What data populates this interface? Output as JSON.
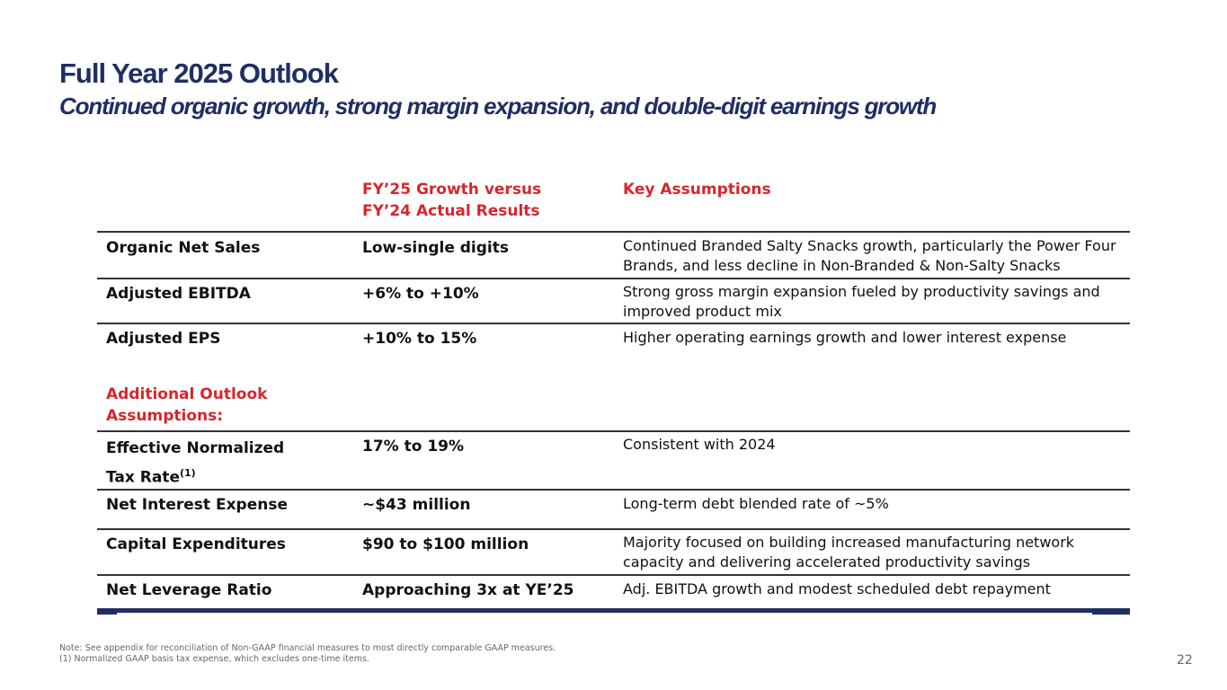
{
  "title": "Full Year 2025 Outlook",
  "subtitle": "Continued organic growth, strong margin expansion, and double-digit earnings growth",
  "headers": {
    "growth_line1": "FY’25 Growth versus",
    "growth_line2": "FY’24 Actual Results",
    "assumptions": "Key Assumptions"
  },
  "rows": [
    {
      "label": "Organic Net Sales",
      "value": "Low-single digits",
      "desc": "Continued Branded Salty Snacks growth, particularly the Power Four Brands, and less decline in Non-Branded & Non-Salty Snacks"
    },
    {
      "label": "Adjusted EBITDA",
      "value": "+6% to +10%",
      "desc": "Strong gross margin expansion fueled by productivity savings and improved product mix"
    },
    {
      "label": "Adjusted EPS",
      "value": "+10% to 15%",
      "desc": "Higher operating earnings growth and lower interest expense"
    }
  ],
  "additional_header_line1": "Additional Outlook",
  "additional_header_line2": "Assumptions:",
  "additional_rows": [
    {
      "label": "Effective Normalized",
      "label2": "Tax Rate",
      "sup": "(1)",
      "value": "17% to 19%",
      "desc": "Consistent with 2024"
    },
    {
      "label": "Net Interest Expense",
      "value": "~$43 million",
      "desc": "Long-term debt blended rate of ~5%"
    },
    {
      "label": "Capital Expenditures",
      "value": "$90 to $100 million",
      "desc": "Majority focused on building increased manufacturing network capacity and delivering accelerated productivity savings"
    },
    {
      "label": "Net Leverage Ratio",
      "value": "Approaching 3x at YE’25",
      "desc": "Adj. EBITDA growth and modest scheduled debt repayment"
    }
  ],
  "footnotes": [
    "Note: See appendix for reconciliation of Non-GAAP financial measures to most directly comparable GAAP measures.",
    "(1) Normalized GAAP basis tax expense, which excludes one-time items."
  ],
  "page_number": "22"
}
